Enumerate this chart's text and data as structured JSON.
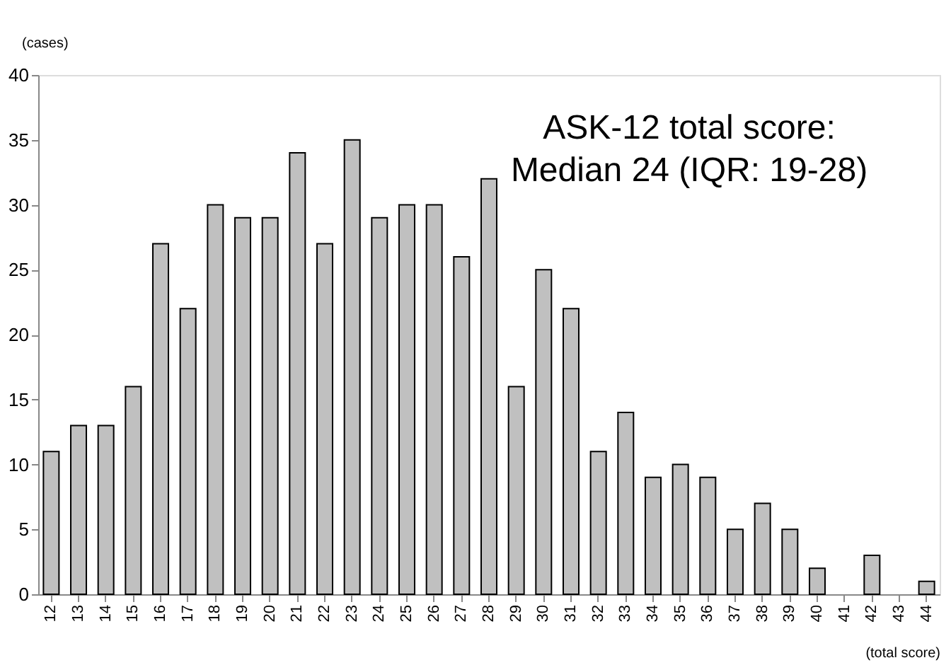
{
  "chart_data": {
    "type": "bar",
    "categories": [
      "12",
      "13",
      "14",
      "15",
      "16",
      "17",
      "18",
      "19",
      "20",
      "21",
      "22",
      "23",
      "24",
      "25",
      "26",
      "27",
      "28",
      "29",
      "30",
      "31",
      "32",
      "33",
      "34",
      "35",
      "36",
      "37",
      "38",
      "39",
      "40",
      "41",
      "42",
      "43",
      "44"
    ],
    "values": [
      11,
      13,
      13,
      16,
      27,
      22,
      30,
      29,
      29,
      34,
      27,
      35,
      29,
      30,
      30,
      26,
      32,
      16,
      25,
      22,
      11,
      14,
      9,
      10,
      9,
      5,
      7,
      5,
      2,
      0,
      3,
      0,
      1
    ],
    "color": "#c0c0c0",
    "ylabel": "(cases)",
    "xlabel": "(total score)",
    "ylim": [
      0,
      40
    ],
    "yticks": [
      0,
      5,
      10,
      15,
      20,
      25,
      30,
      35,
      40
    ],
    "grid": false,
    "annotations": [
      "ASK-12 total score:",
      "Median 24 (IQR: 19-28)"
    ]
  }
}
